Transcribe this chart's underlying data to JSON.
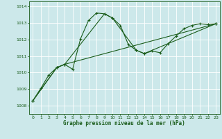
{
  "title": "Graphe pression niveau de la mer (hPa)",
  "bg_color": "#cce8ea",
  "plot_bg_color": "#cce8ea",
  "line_color": "#1a5c1a",
  "grid_color": "#ffffff",
  "xlim": [
    -0.5,
    23.5
  ],
  "ylim": [
    1007.5,
    1014.3
  ],
  "yticks": [
    1008,
    1009,
    1010,
    1011,
    1012,
    1013,
    1014
  ],
  "xticks": [
    0,
    1,
    2,
    3,
    4,
    5,
    6,
    7,
    8,
    9,
    10,
    11,
    12,
    13,
    14,
    15,
    16,
    17,
    18,
    19,
    20,
    21,
    22,
    23
  ],
  "series1_x": [
    0,
    1,
    2,
    3,
    4,
    5,
    6,
    7,
    8,
    9,
    10,
    11,
    12,
    13,
    14,
    15,
    16,
    17,
    18,
    19,
    20,
    21,
    22,
    23
  ],
  "series1_y": [
    1008.3,
    1009.05,
    1009.85,
    1010.3,
    1010.5,
    1010.2,
    1012.05,
    1013.15,
    1013.6,
    1013.55,
    1013.3,
    1012.85,
    1011.7,
    1011.35,
    1011.15,
    1011.3,
    1011.2,
    1011.75,
    1012.2,
    1012.65,
    1012.85,
    1012.95,
    1012.9,
    1012.95
  ],
  "series2_x": [
    0,
    3,
    4,
    9,
    10,
    13,
    14,
    23
  ],
  "series2_y": [
    1008.3,
    1010.3,
    1010.5,
    1013.55,
    1013.3,
    1011.35,
    1011.15,
    1012.95
  ],
  "series3_x": [
    0,
    3,
    4,
    23
  ],
  "series3_y": [
    1008.3,
    1010.3,
    1010.5,
    1012.95
  ]
}
